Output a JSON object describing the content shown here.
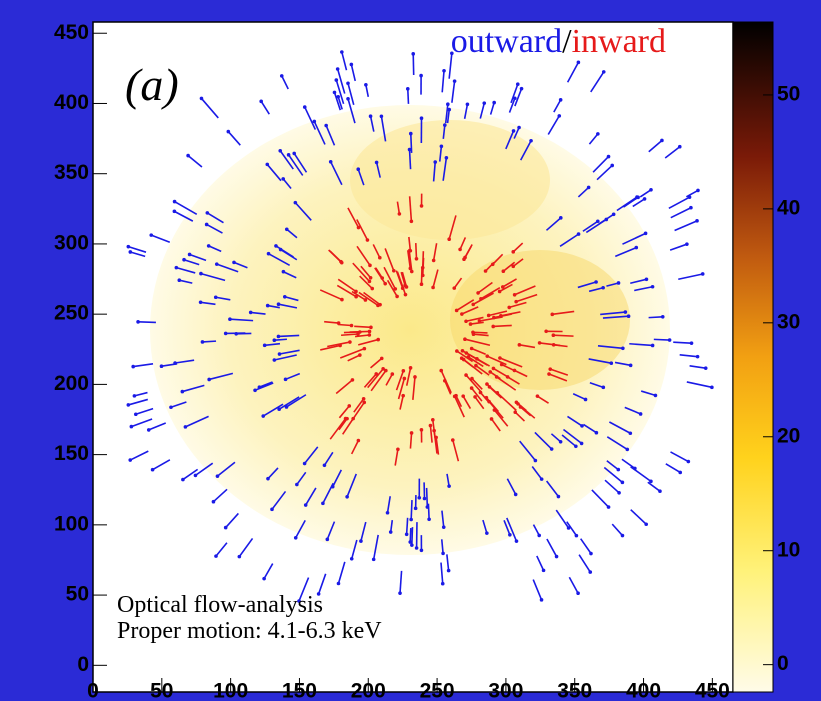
{
  "chart_data": {
    "type": "heatmap",
    "panel_label": "(a)",
    "legend": {
      "outward": "outward",
      "separator": "/",
      "inward": "inward",
      "outward_color": "#1a1ae6",
      "inward_color": "#e61a1a"
    },
    "annotations": [
      "Optical flow-analysis",
      "Proper motion: 4.1-6.3 keV"
    ],
    "xlim": [
      0,
      465
    ],
    "xticks": [
      0,
      50,
      100,
      150,
      200,
      250,
      300,
      350,
      400,
      450
    ],
    "ylim": [
      -19,
      458
    ],
    "yticks": [
      0,
      50,
      100,
      150,
      200,
      250,
      300,
      350,
      400,
      450
    ],
    "colorbar": {
      "lim": [
        -2.4,
        56.4
      ],
      "ticks": [
        0,
        10,
        20,
        30,
        40,
        50
      ]
    }
  }
}
